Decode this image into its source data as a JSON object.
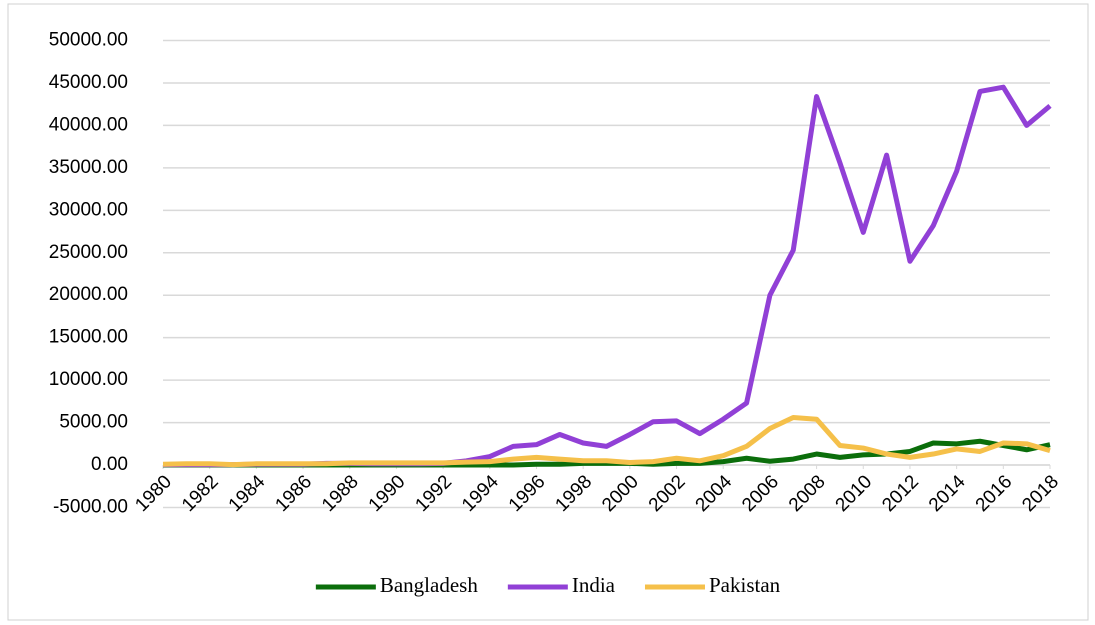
{
  "chart_data": {
    "type": "line",
    "x": [
      1980,
      1981,
      1982,
      1983,
      1984,
      1985,
      1986,
      1987,
      1988,
      1989,
      1990,
      1991,
      1992,
      1993,
      1994,
      1995,
      1996,
      1997,
      1998,
      1999,
      2000,
      2001,
      2002,
      2003,
      2004,
      2005,
      2006,
      2007,
      2008,
      2009,
      2010,
      2011,
      2012,
      2013,
      2014,
      2015,
      2016,
      2017,
      2018
    ],
    "xlim": [
      1980,
      2018
    ],
    "xticks": [
      1980,
      1982,
      1984,
      1986,
      1988,
      1990,
      1992,
      1994,
      1996,
      1998,
      2000,
      2002,
      2004,
      2006,
      2008,
      2010,
      2012,
      2014,
      2016,
      2018
    ],
    "ylim": [
      -5000,
      50000
    ],
    "yticks": [
      {
        "value": -5000,
        "label": "-5000.00"
      },
      {
        "value": 0,
        "label": "0.00"
      },
      {
        "value": 5000,
        "label": "5000.00"
      },
      {
        "value": 10000,
        "label": "10000.00"
      },
      {
        "value": 15000,
        "label": "15000.00"
      },
      {
        "value": 20000,
        "label": "20000.00"
      },
      {
        "value": 25000,
        "label": "25000.00"
      },
      {
        "value": 30000,
        "label": "30000.00"
      },
      {
        "value": 35000,
        "label": "35000.00"
      },
      {
        "value": 40000,
        "label": "40000.00"
      },
      {
        "value": 45000,
        "label": "45000.00"
      },
      {
        "value": 50000,
        "label": "50000.00"
      }
    ],
    "grid": true,
    "legend": "bottom",
    "series": [
      {
        "name": "Bangladesh",
        "color": "#0b6e0b",
        "values": [
          0,
          0,
          0,
          0,
          0,
          0,
          0,
          0,
          0,
          0,
          0,
          0,
          0,
          0,
          0,
          0,
          100,
          100,
          200,
          200,
          200,
          100,
          200,
          200,
          400,
          800,
          450,
          700,
          1300,
          900,
          1200,
          1300,
          1600,
          2600,
          2500,
          2800,
          2300,
          1800,
          2400
        ]
      },
      {
        "name": "India",
        "color": "#9140d6",
        "values": [
          50,
          50,
          50,
          50,
          100,
          100,
          100,
          200,
          200,
          150,
          150,
          150,
          200,
          500,
          1000,
          2200,
          2400,
          3600,
          2600,
          2200,
          3600,
          5100,
          5200,
          3700,
          5400,
          7300,
          20000,
          25300,
          43400,
          35600,
          27400,
          36500,
          24000,
          28200,
          34600,
          44000,
          44500,
          40000,
          42300
        ]
      },
      {
        "name": "Pakistan",
        "color": "#f5c04a",
        "values": [
          100,
          150,
          150,
          50,
          150,
          150,
          150,
          150,
          250,
          250,
          250,
          250,
          250,
          350,
          400,
          700,
          900,
          700,
          500,
          500,
          300,
          400,
          800,
          500,
          1100,
          2200,
          4300,
          5600,
          5400,
          2300,
          2000,
          1300,
          900,
          1300,
          1900,
          1600,
          2600,
          2500,
          1700
        ]
      }
    ]
  }
}
